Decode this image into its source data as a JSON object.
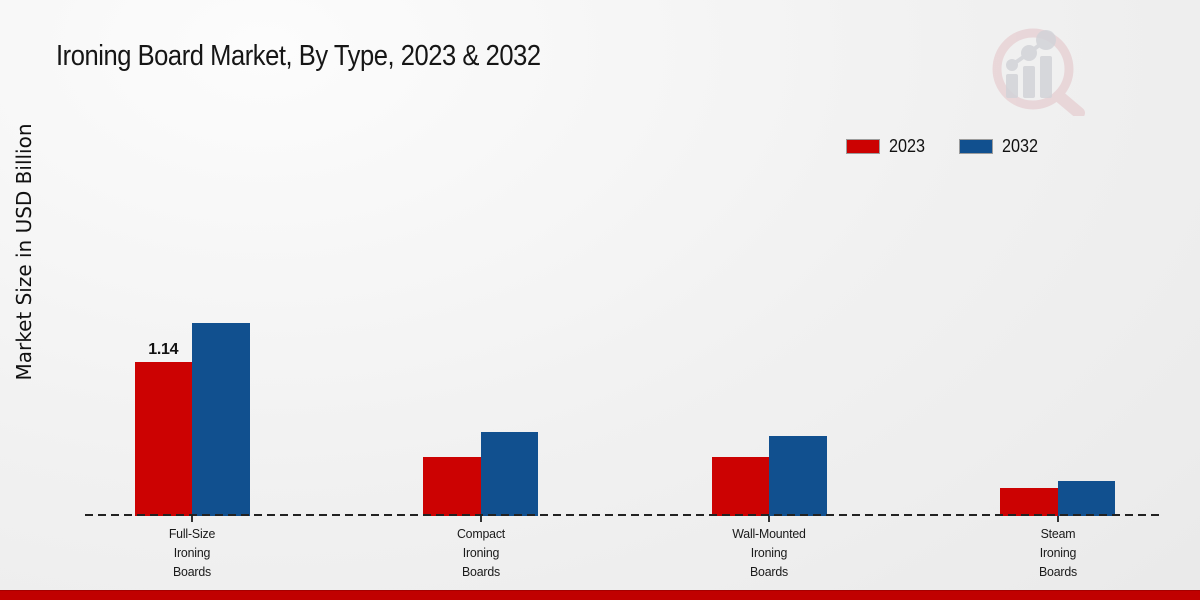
{
  "page": {
    "footer_accent_color": "#c00000",
    "background_color": "#efefef",
    "logo_name": "market-research-watermark-logo"
  },
  "chart_data": {
    "type": "bar",
    "title": "Ironing Board Market, By Type, 2023 & 2032",
    "xlabel": "",
    "ylabel": "Market Size in USD Billion",
    "categories": [
      "Full-Size\nIroning\nBoards",
      "Compact\nIroning\nBoards",
      "Wall-Mounted\nIroning\nBoards",
      "Steam\nIroning\nBoards"
    ],
    "series": [
      {
        "name": "2023",
        "color": "#cc0202",
        "values": [
          1.14,
          0.44,
          0.44,
          0.21
        ]
      },
      {
        "name": "2032",
        "color": "#11508f",
        "values": [
          1.43,
          0.62,
          0.59,
          0.26
        ]
      }
    ],
    "bar_labels": [
      {
        "series": "2023",
        "category_index": 0,
        "text": "1.14"
      }
    ],
    "grid": false,
    "legend_position": "top-right",
    "baseline_style": "dashed",
    "axis_ticks_visible": false
  }
}
